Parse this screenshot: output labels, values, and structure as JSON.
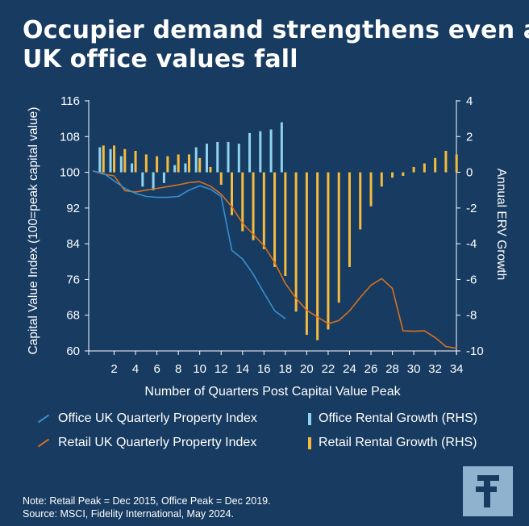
{
  "title_lines": [
    "Occupier demand strengthens even as",
    "UK office values fall"
  ],
  "legend": {
    "office_index": "Office UK Quarterly Property Index",
    "office_rental": "Office Rental Growth (RHS)",
    "retail_index": "Retail UK Quarterly Property Index",
    "retail_rental": "Retail Rental Growth (RHS)"
  },
  "notes": [
    "Note: Retail Peak = Dec 2015, Office Peak = Dec 2019.",
    "Source: MSCI, Fidelity International, May 2024."
  ],
  "logo_icon": "fidelity-f-logo",
  "colors": {
    "background": "#173b61",
    "office_line": "#3a8fd0",
    "office_bar": "#8fd3f2",
    "retail_line": "#d7711e",
    "retail_bar": "#f5bb3d",
    "logo_bg": "#8fb3cf"
  },
  "chart_data": {
    "type": "bar+line",
    "xlabel": "Number of Quarters Post Capital Value Peak",
    "ylabel_left": "Capital Value Index (100=peak capital value)",
    "ylabel_right": "Annual ERV Growth",
    "ylim_left": [
      60,
      116
    ],
    "yticks_left": [
      60,
      68,
      76,
      84,
      92,
      100,
      108,
      116
    ],
    "ylim_right": [
      -10,
      4
    ],
    "yticks_right": [
      -10,
      -8,
      -6,
      -4,
      -2,
      0,
      2,
      4
    ],
    "xticks": [
      2,
      4,
      6,
      8,
      10,
      12,
      14,
      16,
      18,
      20,
      22,
      24,
      26,
      28,
      30,
      32,
      34
    ],
    "office_rental_growth": {
      "x": [
        1,
        2,
        3,
        4,
        5,
        6,
        7,
        8,
        9,
        10,
        11,
        12,
        13,
        14,
        15,
        16,
        17,
        18
      ],
      "values": [
        1.4,
        1.3,
        0.9,
        0.5,
        -0.8,
        -1.0,
        -0.6,
        0.4,
        0.5,
        1.4,
        1.6,
        1.7,
        1.7,
        1.6,
        2.2,
        2.3,
        2.4,
        2.8
      ]
    },
    "retail_rental_growth": {
      "x": [
        1,
        2,
        3,
        4,
        5,
        6,
        7,
        8,
        9,
        10,
        11,
        12,
        13,
        14,
        15,
        16,
        17,
        18,
        19,
        20,
        21,
        22,
        23,
        24,
        25,
        26,
        27,
        28,
        29,
        30,
        31,
        32,
        33,
        34
      ],
      "values": [
        1.5,
        1.5,
        1.3,
        1.2,
        1.0,
        0.9,
        0.9,
        1.0,
        1.0,
        0.8,
        0.3,
        -0.7,
        -2.4,
        -3.3,
        -3.8,
        -4.3,
        -5.3,
        -5.8,
        -7.8,
        -9.1,
        -9.4,
        -8.8,
        -7.3,
        -5.3,
        -3.2,
        -1.9,
        -0.8,
        -0.3,
        -0.2,
        0.3,
        0.5,
        0.8,
        1.2,
        1.0
      ]
    },
    "office_index": {
      "x": [
        0,
        1,
        2,
        3,
        4,
        5,
        6,
        7,
        8,
        9,
        10,
        11,
        12,
        13,
        14,
        15,
        16,
        17,
        18
      ],
      "values": [
        100.3,
        99.8,
        98.1,
        96.4,
        95.3,
        94.6,
        94.4,
        94.4,
        94.6,
        96.0,
        97.0,
        96.2,
        94.6,
        82.5,
        80.6,
        77.2,
        73.0,
        69.0,
        67.2
      ]
    },
    "retail_index": {
      "x": [
        0,
        1,
        2,
        3,
        4,
        5,
        6,
        7,
        8,
        9,
        10,
        11,
        12,
        13,
        14,
        15,
        16,
        17,
        18,
        19,
        20,
        21,
        22,
        23,
        24,
        25,
        26,
        27,
        28,
        29,
        30,
        31,
        32,
        33,
        34
      ],
      "values": [
        100.3,
        99.6,
        99.2,
        95.9,
        95.6,
        96.0,
        96.4,
        96.8,
        97.2,
        97.7,
        97.9,
        96.9,
        95.1,
        92.3,
        88.6,
        86.1,
        83.6,
        79.8,
        75.1,
        71.8,
        69.1,
        67.6,
        66.1,
        66.8,
        69.0,
        72.0,
        74.7,
        76.2,
        74.0,
        64.5,
        64.4,
        64.5,
        63.0,
        61.0,
        60.6
      ]
    }
  }
}
